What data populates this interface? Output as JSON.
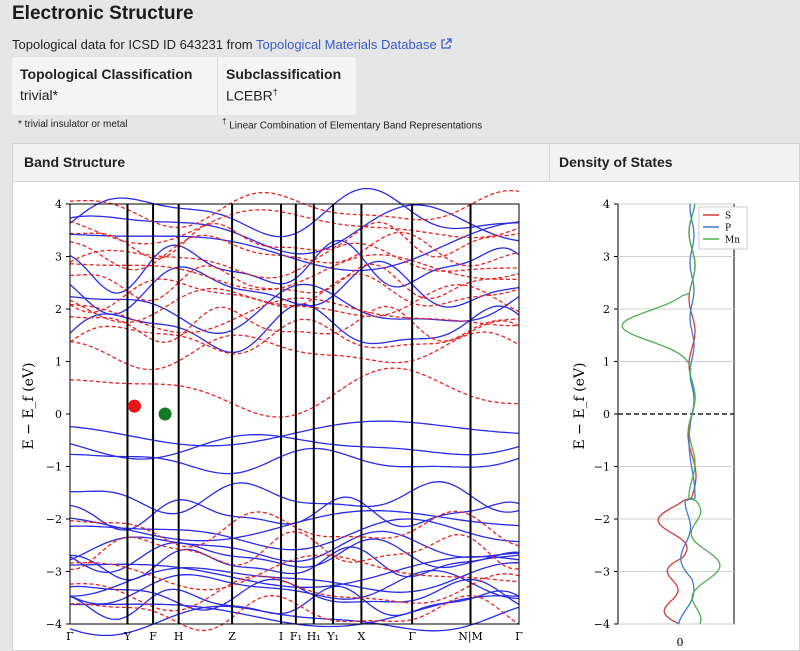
{
  "title": "Electronic Structure",
  "topo": {
    "prefix": "Topological data for ICSD ID 643231 from ",
    "link": "Topological Materials Database",
    "external_icon": "external-link-icon"
  },
  "classification": {
    "head1": "Topological Classification",
    "val1": "trivial*",
    "head2": "Subclassification",
    "val2": "LCEBR",
    "val2_sup": "†"
  },
  "notes": {
    "note1": "* trivial insulator or metal",
    "note2_sup": "†",
    "note2": " Linear Combination of Elementary Band Representations"
  },
  "panels": {
    "band_structure": "Band Structure",
    "dos": "Density of States"
  },
  "band_plot": {
    "ylabel": "E − E_f (eV)",
    "ylim": [
      -4,
      4
    ],
    "yticks": [
      "4",
      "3",
      "2",
      "1",
      "0",
      "−1",
      "−2",
      "−3",
      "−4"
    ],
    "kpoints": [
      "Γ",
      "Y",
      "F",
      "H",
      "Z",
      "I",
      "F₁",
      "H₁",
      "Y₁",
      "X",
      "Γ",
      "N|M",
      "Γ"
    ],
    "markers": [
      {
        "label": "red marker",
        "color": "#e8141a",
        "k": "Y",
        "energy": 0.15
      },
      {
        "label": "green marker",
        "color": "#127a23",
        "k": "F",
        "energy": 0.0
      }
    ]
  },
  "dos_plot": {
    "ylabel": "E − E_f (eV)",
    "ylim": [
      -4,
      4
    ],
    "yticks": [
      "4",
      "3",
      "2",
      "1",
      "0",
      "−1",
      "−2",
      "−3",
      "−4"
    ],
    "xtick": "0",
    "legend": [
      {
        "name": "S",
        "color": "#d43b3b"
      },
      {
        "name": "P",
        "color": "#3b7bd4"
      },
      {
        "name": "Mn",
        "color": "#4caf50"
      }
    ]
  },
  "colors": {
    "band_solid": "#2b2bea",
    "band_dashed": "#ee2222"
  }
}
